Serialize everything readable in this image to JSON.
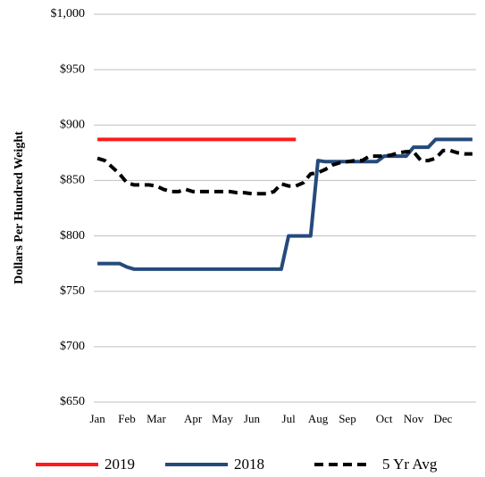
{
  "chart_data": {
    "type": "line",
    "y_label": "Dollars Per Hundred Weight",
    "categories": [
      "Jan",
      null,
      null,
      null,
      "Feb",
      null,
      null,
      null,
      "Mar",
      null,
      null,
      null,
      null,
      "Apr",
      null,
      null,
      null,
      "May",
      null,
      null,
      null,
      "Jun",
      null,
      null,
      null,
      null,
      "Jul",
      null,
      null,
      null,
      "Aug",
      null,
      null,
      null,
      "Sep",
      null,
      null,
      null,
      null,
      "Oct",
      null,
      null,
      null,
      "Nov",
      null,
      null,
      null,
      "Dec",
      null,
      null,
      null,
      null
    ],
    "series": [
      {
        "name": "2019",
        "color": "#ff1a1a",
        "values": [
          887,
          887,
          887,
          887,
          887,
          887,
          887,
          887,
          887,
          887,
          887,
          887,
          887,
          887,
          887,
          887,
          887,
          887,
          887,
          887,
          887,
          887,
          887,
          887,
          887,
          887,
          887,
          887,
          null,
          null,
          null,
          null,
          null,
          null,
          null,
          null,
          null,
          null,
          null,
          null,
          null,
          null,
          null,
          null,
          null,
          null,
          null,
          null,
          null,
          null,
          null,
          null
        ]
      },
      {
        "name": "2018",
        "color": "#254a7c",
        "values": [
          775,
          775,
          775,
          775,
          772,
          770,
          770,
          770,
          770,
          770,
          770,
          770,
          770,
          770,
          770,
          770,
          770,
          770,
          770,
          770,
          770,
          770,
          770,
          770,
          770,
          770,
          800,
          800,
          800,
          800,
          868,
          867,
          867,
          867,
          867,
          867,
          867,
          867,
          867,
          872,
          872,
          872,
          872,
          880,
          880,
          880,
          887,
          887,
          887,
          887,
          887,
          887
        ]
      },
      {
        "name": "5 Yr Avg",
        "color": "#000000",
        "dashed": true,
        "values": [
          870,
          868,
          862,
          856,
          848,
          846,
          846,
          846,
          845,
          842,
          840,
          840,
          842,
          840,
          840,
          840,
          840,
          840,
          840,
          839,
          839,
          838,
          838,
          838,
          840,
          847,
          845,
          845,
          848,
          856,
          857,
          860,
          864,
          866,
          867,
          868,
          868,
          872,
          872,
          872,
          873,
          875,
          876,
          876,
          868,
          868,
          870,
          877,
          877,
          875,
          874,
          874
        ]
      }
    ],
    "ylim": [
      650,
      1000
    ],
    "yticks": [
      {
        "value": 650,
        "label": "$650"
      },
      {
        "value": 700,
        "label": "$700"
      },
      {
        "value": 750,
        "label": "$750"
      },
      {
        "value": 800,
        "label": "$800"
      },
      {
        "value": 850,
        "label": "$850"
      },
      {
        "value": 900,
        "label": "$900"
      },
      {
        "value": 950,
        "label": "$950"
      },
      {
        "value": 1000,
        "label": "$1,000"
      }
    ],
    "grid": true,
    "legend": "bottom"
  }
}
